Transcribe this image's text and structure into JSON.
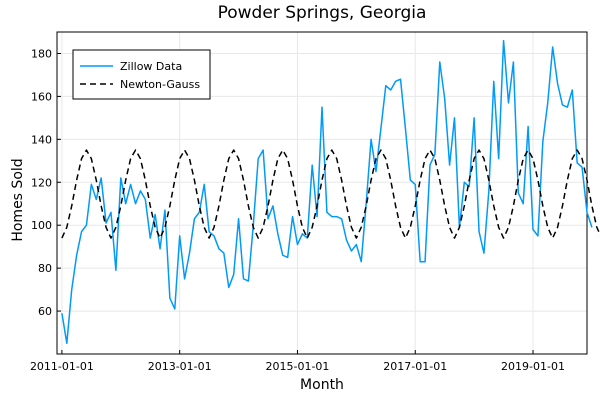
{
  "chart_data": {
    "type": "line",
    "title": "Powder Springs, Georgia",
    "xlabel": "Month",
    "ylabel": "Homes Sold",
    "x_start": "2011-01",
    "x_step": "1 month",
    "xlim": [
      "2010-12",
      "2019-12"
    ],
    "ylim": [
      40,
      190
    ],
    "xticks": [
      "2011-01-01",
      "2013-01-01",
      "2015-01-01",
      "2017-01-01",
      "2019-01-01"
    ],
    "yticks": [
      60,
      80,
      100,
      120,
      140,
      160,
      180
    ],
    "grid": true,
    "legend_position": "top-left",
    "series": [
      {
        "name": "Zillow Data",
        "color": "#009af9",
        "style": "solid",
        "values": [
          59,
          45,
          70,
          86,
          97,
          100,
          119,
          112,
          122,
          101,
          106,
          79,
          122,
          110,
          119,
          110,
          116,
          112,
          94,
          105,
          89,
          107,
          66,
          61,
          95,
          75,
          87,
          103,
          106,
          119,
          97,
          95,
          89,
          87,
          71,
          77,
          103,
          75,
          74,
          100,
          131,
          135,
          103,
          109,
          96,
          86,
          85,
          104,
          91,
          96,
          94,
          128,
          104,
          155,
          106,
          104,
          104,
          103,
          93,
          88,
          91,
          83,
          110,
          140,
          125,
          145,
          165,
          163,
          167,
          168,
          145,
          121,
          119,
          83,
          83,
          128,
          133,
          176,
          159,
          128,
          150,
          99,
          120,
          118,
          150,
          97,
          87,
          116,
          167,
          131,
          186,
          157,
          176,
          115,
          110,
          146,
          98,
          95,
          139,
          157,
          183,
          166,
          156,
          155,
          163,
          129,
          127,
          106,
          99
        ]
      },
      {
        "name": "Newton-Gauss",
        "color": "#000000",
        "style": "dashed",
        "values": [
          94,
          99,
          109,
          121,
          131,
          135,
          131,
          121,
          109,
          99,
          94,
          99,
          109,
          121,
          131,
          135,
          131,
          121,
          109,
          99,
          94,
          99,
          109,
          121,
          131,
          135,
          131,
          121,
          109,
          99,
          94,
          99,
          109,
          121,
          131,
          135,
          131,
          121,
          109,
          99,
          94,
          99,
          109,
          121,
          131,
          135,
          131,
          121,
          109,
          99,
          94,
          99,
          109,
          121,
          131,
          135,
          131,
          121,
          109,
          99,
          94,
          99,
          109,
          121,
          131,
          135,
          131,
          121,
          109,
          99,
          94,
          99,
          109,
          121,
          131,
          135,
          131,
          121,
          109,
          99,
          94,
          99,
          109,
          121,
          131,
          135,
          131,
          121,
          109,
          99,
          94,
          99,
          109,
          121,
          131,
          135,
          131,
          121,
          109,
          99,
          94,
          99,
          109,
          121,
          131,
          135,
          131,
          121,
          109,
          99,
          94
        ]
      }
    ]
  }
}
